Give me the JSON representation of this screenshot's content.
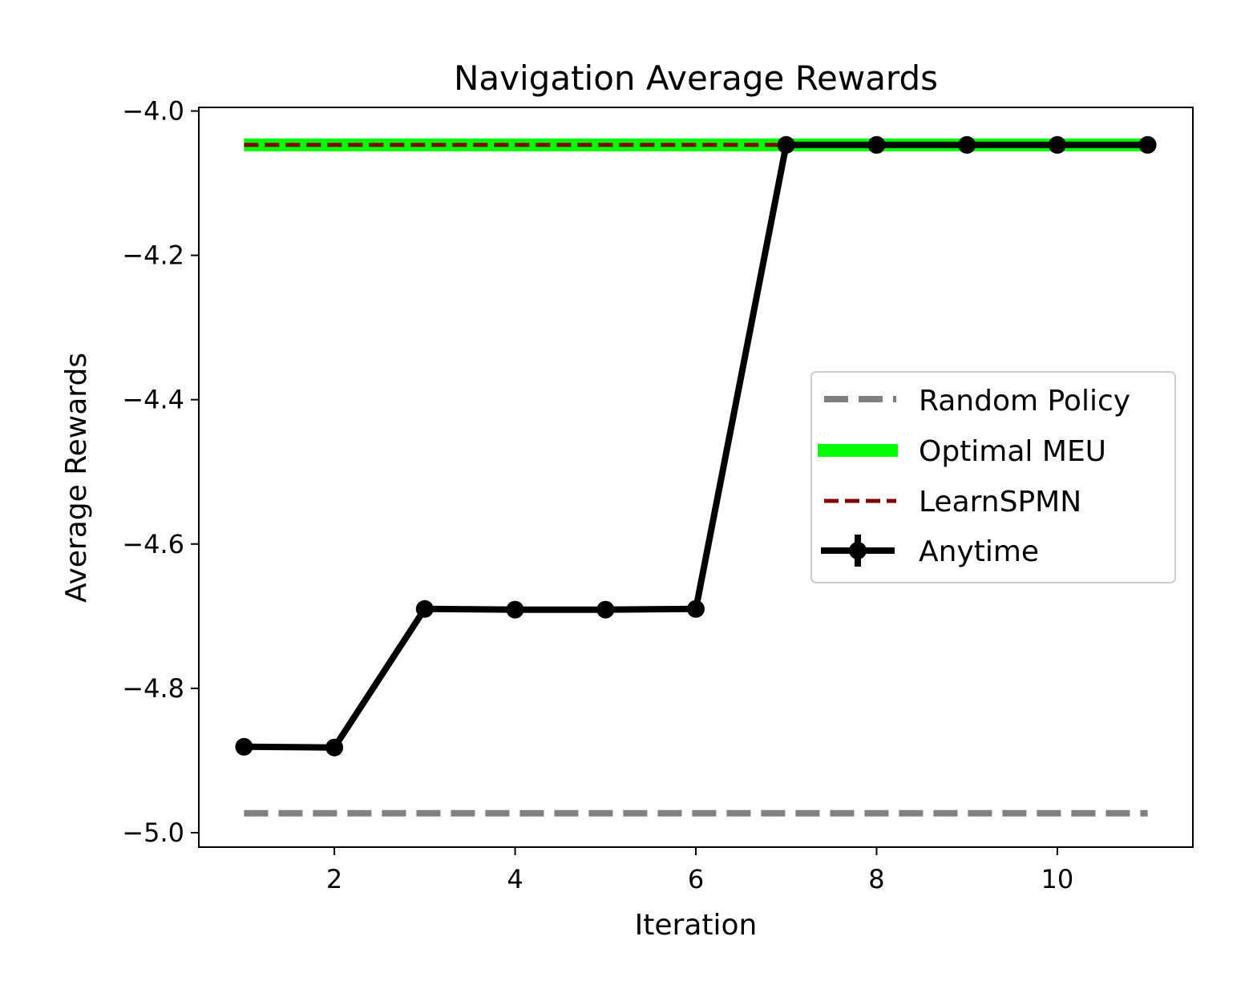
{
  "chart_data": {
    "type": "line",
    "title": "Navigation Average Rewards",
    "xlabel": "Iteration",
    "ylabel": "Average Rewards",
    "xlim": [
      0.5,
      11.5
    ],
    "ylim": [
      -5.02,
      -3.995
    ],
    "xticks": [
      2,
      4,
      6,
      8,
      10
    ],
    "xtick_labels": [
      "2",
      "4",
      "6",
      "8",
      "10"
    ],
    "yticks": [
      -4.0,
      -4.2,
      -4.4,
      -4.6,
      -4.8,
      -5.0
    ],
    "ytick_labels": [
      "−4.0",
      "−4.2",
      "−4.4",
      "−4.6",
      "−4.8",
      "−5.0"
    ],
    "legend_position": "center-right",
    "series": [
      {
        "name": "Random Policy",
        "style": "dashed",
        "color": "#808080",
        "x": [
          1,
          11
        ],
        "values": [
          -4.973,
          -4.973
        ]
      },
      {
        "name": "Optimal MEU",
        "style": "solid-thick",
        "color": "#00ff00",
        "x": [
          1,
          11
        ],
        "values": [
          -4.047,
          -4.047
        ]
      },
      {
        "name": "LearnSPMN",
        "style": "dashed",
        "color": "#800000",
        "x": [
          1,
          11
        ],
        "values": [
          -4.047,
          -4.047
        ]
      },
      {
        "name": "Anytime",
        "style": "solid-markers",
        "color": "#000000",
        "x": [
          1,
          2,
          3,
          4,
          5,
          6,
          7,
          8,
          9,
          10,
          11
        ],
        "values": [
          -4.881,
          -4.882,
          -4.69,
          -4.691,
          -4.691,
          -4.69,
          -4.047,
          -4.047,
          -4.047,
          -4.047,
          -4.047
        ]
      }
    ]
  }
}
